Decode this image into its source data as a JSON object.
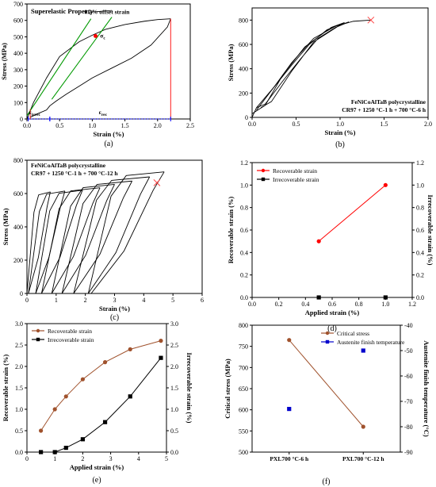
{
  "chart_data": [
    {
      "panel": "(a)",
      "type": "line",
      "title": "Superelastic Property",
      "xlabel": "Strain (%)",
      "ylabel": "Stress (MPa)",
      "xlim": [
        0,
        2.5
      ],
      "ylim": [
        0,
        700
      ],
      "xticks": [
        0,
        0.5,
        1,
        1.5,
        2,
        2.5
      ],
      "yticks": [
        0,
        100,
        200,
        300,
        400,
        500,
        600,
        700
      ],
      "annotations": {
        "offset": "0.2% offset strain",
        "sigma_c": "σ",
        "sigma_c_sub": "c",
        "eirrec": "ε",
        "eirrec_sub": "irrec",
        "erec": "ε",
        "erec_sub": "rec"
      },
      "series": [
        {
          "role": "loop_loading",
          "color": "#000000",
          "x": [
            0,
            0.1,
            0.3,
            0.5,
            0.8,
            1.0,
            1.2,
            1.5,
            1.8,
            2.0,
            2.2
          ],
          "y": [
            0,
            100,
            250,
            380,
            470,
            510,
            545,
            575,
            595,
            605,
            610
          ]
        },
        {
          "role": "loop_unloading",
          "color": "#000000",
          "x": [
            2.2,
            2.15,
            1.9,
            1.6,
            1.3,
            1.0,
            0.8,
            0.6,
            0.45,
            0.35,
            0.3,
            0.15,
            0.05
          ],
          "y": [
            610,
            560,
            450,
            370,
            310,
            250,
            200,
            150,
            110,
            80,
            55,
            30,
            10
          ]
        },
        {
          "role": "offset_line_1",
          "color": "#009900",
          "x": [
            0,
            0.98
          ],
          "y": [
            20,
            610
          ]
        },
        {
          "role": "offset_line_2",
          "color": "#009900",
          "x": [
            0.38,
            1.3
          ],
          "y": [
            120,
            620
          ]
        },
        {
          "role": "sigma_c_point",
          "color": "#ff0000",
          "x": [
            1.05
          ],
          "y": [
            505
          ]
        },
        {
          "role": "recovery_drop",
          "color": "#ff0000",
          "x": [
            2.2,
            2.2
          ],
          "y": [
            610,
            0
          ]
        },
        {
          "role": "irrec_drop",
          "color": "#ff0000",
          "x": [
            0.05,
            0.05
          ],
          "y": [
            60,
            0
          ]
        },
        {
          "role": "irrec_bracket",
          "color": "#0000ff",
          "x": [
            0.02,
            0.35
          ],
          "y": [
            0,
            0
          ]
        },
        {
          "role": "rec_bracket",
          "color": "#0000ff",
          "x": [
            0.35,
            2.2
          ],
          "y": [
            0,
            0
          ]
        }
      ]
    },
    {
      "panel": "(b)",
      "type": "line",
      "xlabel": "Strain (%)",
      "ylabel": "Stress (MPa)",
      "xlim": [
        0,
        2.0
      ],
      "ylim": [
        0,
        900
      ],
      "xticks": [
        0,
        0.5,
        1,
        1.5,
        2
      ],
      "yticks": [
        0,
        200,
        400,
        600,
        800
      ],
      "annotations": {
        "line1": "FeNiCoAlTaB polycrystalline",
        "line2": "CR97 + 1250 °C-1 h + 700 °C-6 h",
        "failure_x": 1.35,
        "failure_y": 800
      },
      "series": [
        {
          "role": "cycle_1",
          "color": "#000000",
          "x": [
            0,
            0.05,
            0.25,
            0.45,
            0.65,
            0.85,
            1.05,
            0.9,
            0.6,
            0.35,
            0.15,
            0.0
          ],
          "y": [
            0,
            80,
            250,
            430,
            600,
            720,
            780,
            740,
            580,
            350,
            100,
            30
          ]
        },
        {
          "role": "cycle_2",
          "color": "#000000",
          "x": [
            0.05,
            0.15,
            0.35,
            0.55,
            0.75,
            0.95,
            1.1,
            1.0,
            0.7,
            0.45,
            0.22,
            0.1
          ],
          "y": [
            80,
            110,
            300,
            480,
            650,
            740,
            785,
            760,
            620,
            380,
            130,
            80
          ]
        },
        {
          "role": "cycle_3",
          "color": "#000000",
          "x": [
            0.05,
            0.25,
            0.45,
            0.7,
            0.95,
            1.15,
            1.35
          ],
          "y": [
            60,
            250,
            450,
            650,
            750,
            790,
            800
          ]
        }
      ]
    },
    {
      "panel": "(c)",
      "type": "line",
      "xlabel": "Strain (%)",
      "ylabel": "Stress (MPa)",
      "xlim": [
        0,
        6
      ],
      "ylim": [
        0,
        800
      ],
      "xticks": [
        0,
        1,
        2,
        3,
        4,
        5,
        6
      ],
      "yticks": [
        0,
        200,
        400,
        600,
        800
      ],
      "annotations": {
        "line1": "FeNiCoAlTaB polycrystalline",
        "line2": "CR97 + 1250 °C-1 h + 700 °C-12 h",
        "failure_x": 4.45,
        "failure_y": 665
      },
      "loops": [
        {
          "peak": [
            0.8,
            610
          ],
          "end": 0.05
        },
        {
          "peak": [
            1.3,
            615
          ],
          "end": 0.3
        },
        {
          "peak": [
            1.9,
            620
          ],
          "end": 0.5
        },
        {
          "peak": [
            2.5,
            635
          ],
          "end": 0.85
        },
        {
          "peak": [
            3.0,
            655
          ],
          "end": 1.2
        },
        {
          "peak": [
            3.6,
            675
          ],
          "end": 1.6
        },
        {
          "peak": [
            4.2,
            700
          ],
          "end": 2.1
        },
        {
          "peak": [
            4.7,
            730
          ],
          "end": 2.2
        }
      ]
    },
    {
      "panel": "(d)",
      "type": "line",
      "xlabel": "Applied strain (%)",
      "ylabel": "Recoverable strain (%)",
      "y2label": "Irrecoverable strain (%)",
      "xlim": [
        0,
        1.2
      ],
      "ylim": [
        0,
        1.2
      ],
      "y2lim": [
        0,
        1.2
      ],
      "xticks": [
        0,
        0.2,
        0.4,
        0.6,
        0.8,
        1.0,
        1.2
      ],
      "yticks": [
        0,
        0.2,
        0.4,
        0.6,
        0.8,
        1.0,
        1.2
      ],
      "legend": "top-left",
      "series": [
        {
          "name": "Recoverable strain",
          "color": "#ff0000",
          "marker": "circle",
          "x": [
            0.5,
            1.0
          ],
          "y": [
            0.5,
            1.0
          ]
        },
        {
          "name": "Irrecoverable strain",
          "color": "#000000",
          "marker": "square",
          "x": [
            0.5,
            1.0
          ],
          "y": [
            0,
            0
          ]
        }
      ]
    },
    {
      "panel": "(e)",
      "type": "line",
      "xlabel": "Applied strain (%)",
      "ylabel": "Recoverable strain (%)",
      "y2label": "Irrecoverable strain (%)",
      "xlim": [
        0,
        5
      ],
      "ylim": [
        0,
        3.0
      ],
      "y2lim": [
        0,
        3.0
      ],
      "xticks": [
        0,
        1,
        2,
        3,
        4,
        5
      ],
      "yticks": [
        0,
        0.5,
        1.0,
        1.5,
        2.0,
        2.5,
        3.0
      ],
      "legend": "top-left",
      "series": [
        {
          "name": "Recoverable strain",
          "color": "#a0522d",
          "marker": "circle",
          "x": [
            0.5,
            1.0,
            1.4,
            2.0,
            2.8,
            3.7,
            4.8
          ],
          "y": [
            0.5,
            1.0,
            1.3,
            1.7,
            2.1,
            2.4,
            2.6
          ]
        },
        {
          "name": "Irrecoverable strain",
          "color": "#000000",
          "marker": "square",
          "x": [
            0.5,
            1.0,
            1.4,
            2.0,
            2.8,
            3.7,
            4.8
          ],
          "y": [
            0,
            0,
            0.1,
            0.3,
            0.7,
            1.3,
            2.2
          ]
        }
      ]
    },
    {
      "panel": "(f)",
      "type": "scatter",
      "categories": [
        "PXL700 °C-6 h",
        "PXL700 °C-12 h"
      ],
      "ylabel": "Critical stress (MPa)",
      "y2label": "Austenite finish temperature (°C)",
      "ylim": [
        500,
        800
      ],
      "y2lim": [
        -90,
        -40
      ],
      "yticks": [
        500,
        550,
        600,
        650,
        700,
        750,
        800
      ],
      "y2ticks": [
        -90,
        -80,
        -70,
        -60,
        -50,
        -40
      ],
      "legend": "top-right",
      "series": [
        {
          "name": "Critical stress",
          "color": "#a0522d",
          "marker": "circle",
          "axis": "left",
          "values": [
            765,
            560
          ]
        },
        {
          "name": "Austenite finish temperature",
          "color": "#0000cc",
          "marker": "square",
          "axis": "right",
          "values": [
            -73,
            -50
          ]
        }
      ]
    }
  ]
}
